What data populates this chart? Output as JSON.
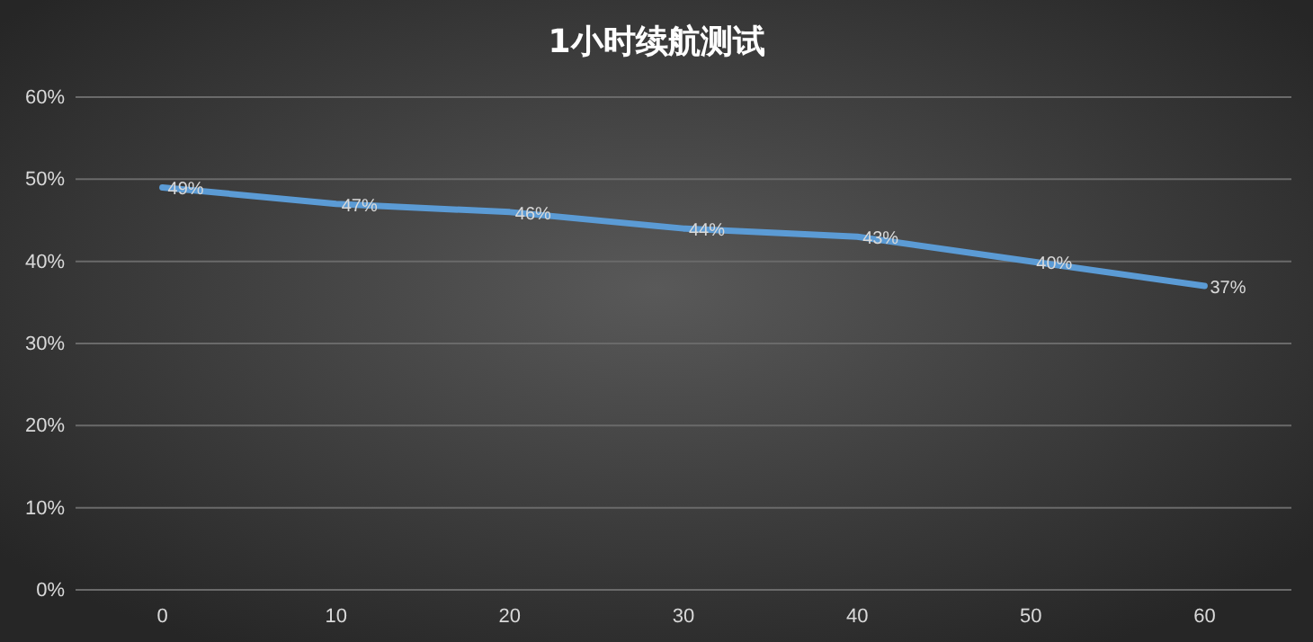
{
  "chart_data": {
    "type": "line",
    "title": "1小时续航测试",
    "categories": [
      "0",
      "10",
      "20",
      "30",
      "40",
      "50",
      "60"
    ],
    "series": [
      {
        "color": "#5b9bd5",
        "values": [
          49,
          47,
          46,
          44,
          43,
          40,
          37
        ]
      }
    ],
    "value_labels": [
      "49%",
      "47%",
      "46%",
      "44%",
      "43%",
      "40%",
      "37%"
    ],
    "ylim": [
      0,
      60
    ],
    "yticks": [
      {
        "value": 0,
        "label": "0%"
      },
      {
        "value": 10,
        "label": "10%"
      },
      {
        "value": 20,
        "label": "20%"
      },
      {
        "value": 30,
        "label": "30%"
      },
      {
        "value": 40,
        "label": "40%"
      },
      {
        "value": 50,
        "label": "50%"
      },
      {
        "value": 60,
        "label": "60%"
      }
    ],
    "grid": "y",
    "marker": "none",
    "line_style": "solid"
  }
}
